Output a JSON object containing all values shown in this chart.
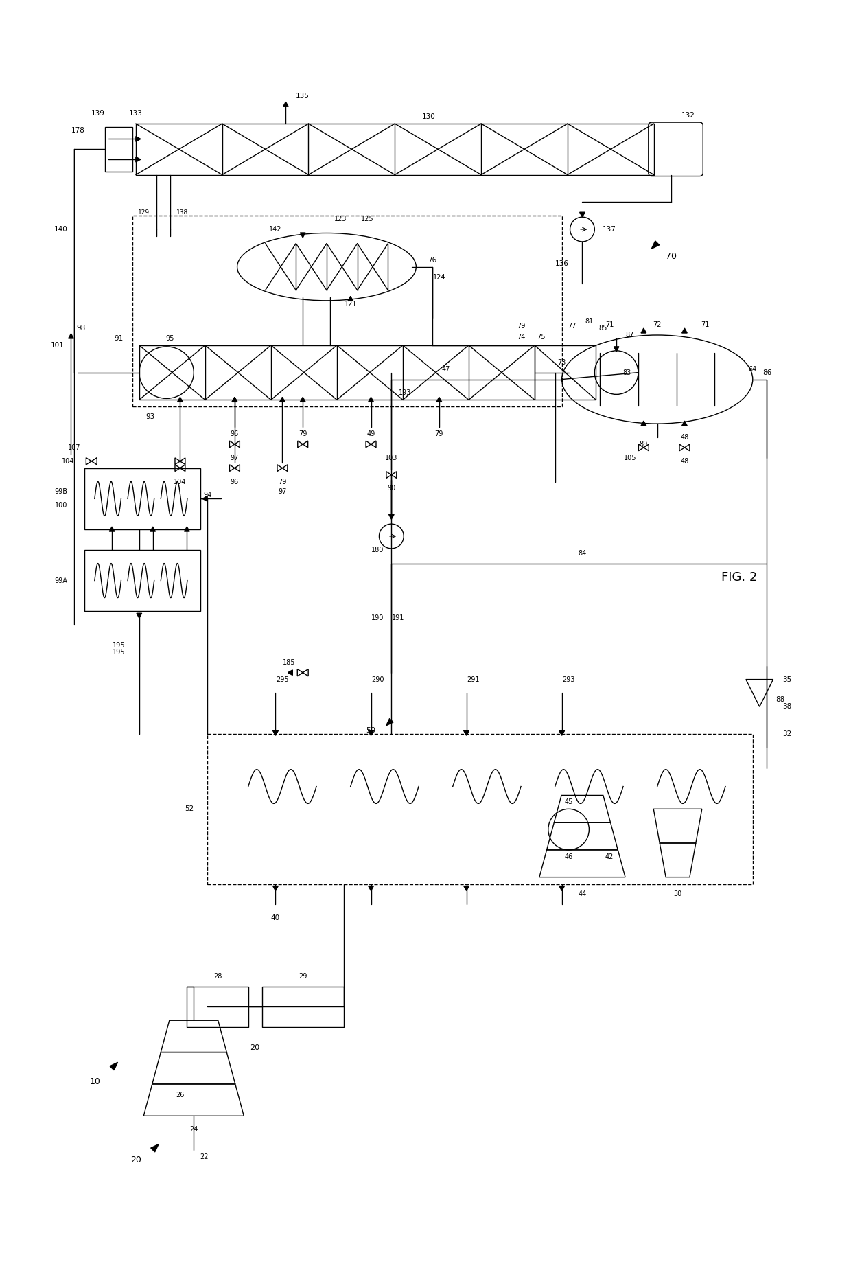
{
  "title": "FIG. 2",
  "bg_color": "#ffffff",
  "line_color": "#000000",
  "figsize": [
    12.4,
    18.6
  ],
  "dpi": 100
}
